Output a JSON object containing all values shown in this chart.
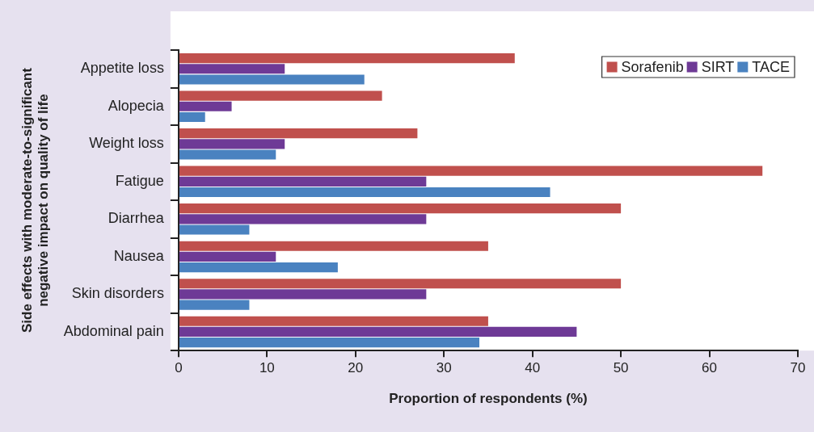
{
  "chart_data": {
    "type": "bar",
    "orientation": "horizontal",
    "xlabel": "Proportion of respondents (%)",
    "ylabel": "Side effects with moderate-to-significant negative impact on quality of life",
    "categories": [
      "Appetite loss",
      "Alopecia",
      "Weight loss",
      "Fatigue",
      "Diarrhea",
      "Nausea",
      "Skin disorders",
      "Abdominal pain"
    ],
    "series": [
      {
        "name": "Sorafenib",
        "color": "#c0504d",
        "values": [
          38,
          23,
          27,
          66,
          50,
          35,
          50,
          35
        ]
      },
      {
        "name": "SIRT",
        "color": "#6e3a96",
        "values": [
          12,
          6,
          12,
          28,
          28,
          11,
          28,
          45
        ]
      },
      {
        "name": "TACE",
        "color": "#4a82c0",
        "values": [
          21,
          3,
          11,
          42,
          8,
          18,
          8,
          34
        ]
      }
    ],
    "xlim": [
      0,
      70
    ],
    "xticks": [
      0,
      10,
      20,
      30,
      40,
      50,
      60,
      70
    ],
    "grid": false,
    "legend": "top right"
  }
}
